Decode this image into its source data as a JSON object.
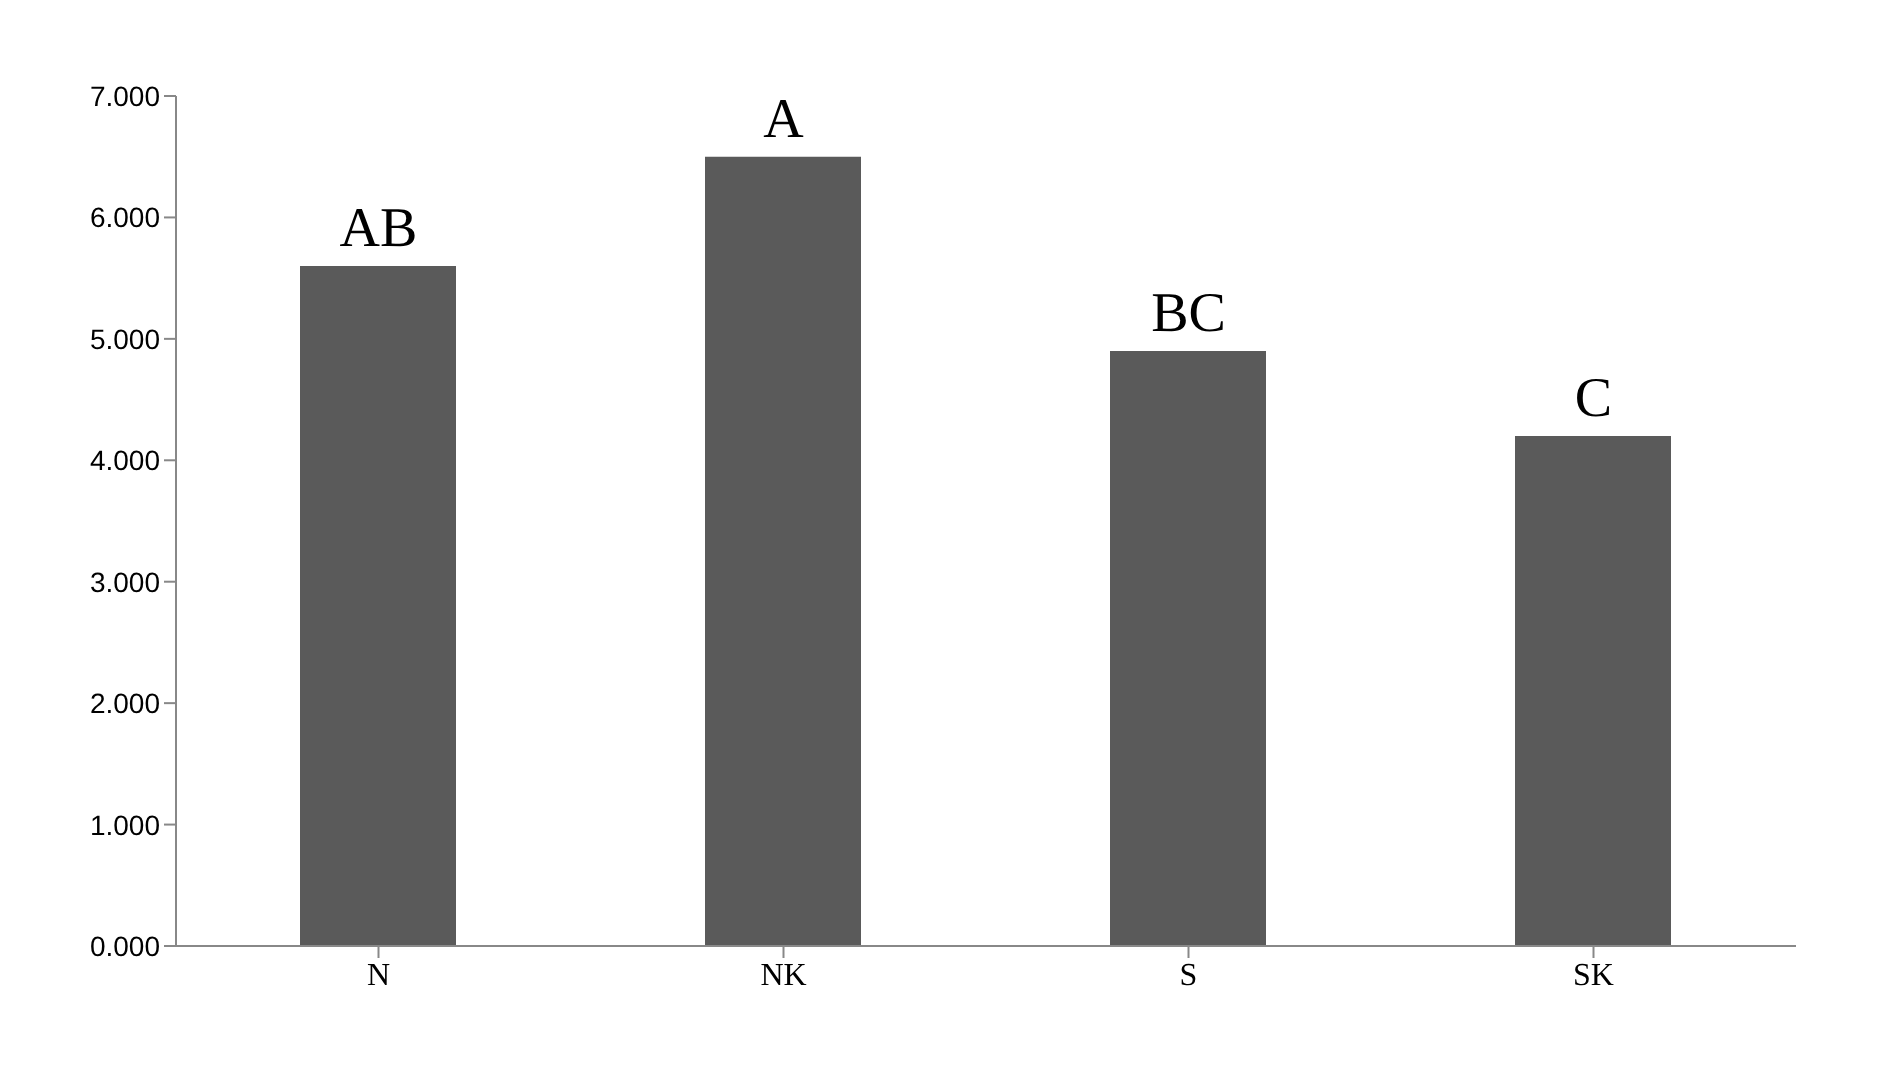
{
  "chart_data": {
    "type": "bar",
    "categories": [
      "N",
      "NK",
      "S",
      "SK"
    ],
    "values": [
      5.6,
      6.5,
      4.9,
      4.2
    ],
    "color": "#5a5a5a",
    "ylim": [
      0,
      7
    ],
    "yticks": [
      {
        "value": 0,
        "label": "0.000"
      },
      {
        "value": 1,
        "label": "1.000"
      },
      {
        "value": 2,
        "label": "2.000"
      },
      {
        "value": 3,
        "label": "3.000"
      },
      {
        "value": 4,
        "label": "4.000"
      },
      {
        "value": 5,
        "label": "5.000"
      },
      {
        "value": 6,
        "label": "6.000"
      },
      {
        "value": 7,
        "label": "7.000"
      }
    ],
    "grid": false,
    "legend": false,
    "annotations": [
      {
        "text": "AB",
        "x": "N",
        "y": 5.6
      },
      {
        "text": "A",
        "x": "NK",
        "y": 6.5
      },
      {
        "text": "BC",
        "x": "S",
        "y": 4.9
      },
      {
        "text": "C",
        "x": "SK",
        "y": 4.2
      }
    ]
  }
}
